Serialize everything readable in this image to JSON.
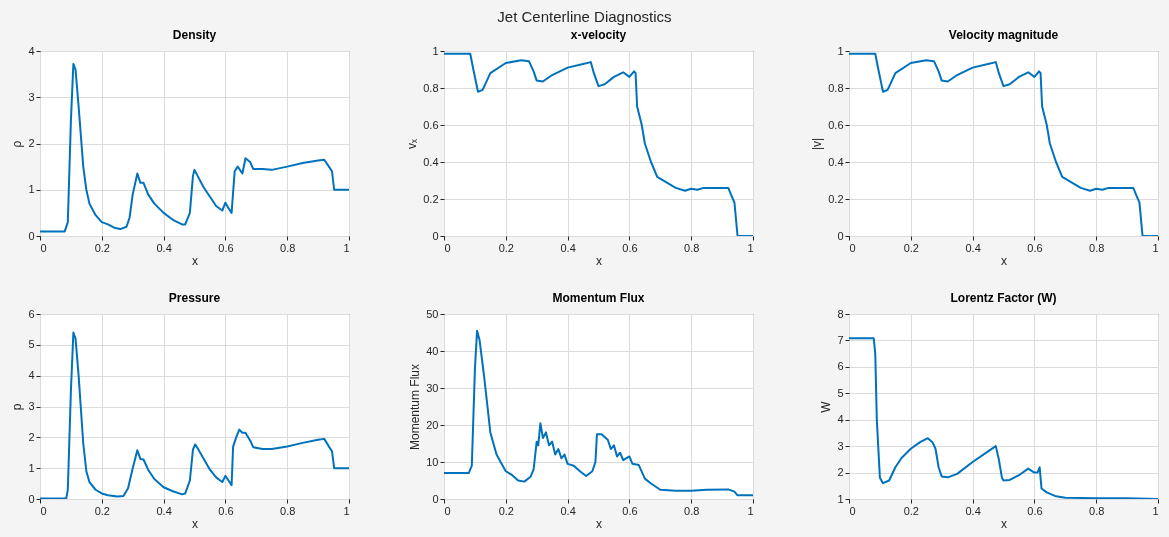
{
  "chart_data": [
    {
      "type": "other",
      "title": "Jet Centerline Diagnostics"
    },
    {
      "type": "line",
      "title": "Density",
      "xlabel": "x",
      "ylabel": "ρ",
      "xlim": [
        0,
        1
      ],
      "xticks": [
        0,
        0.2,
        0.4,
        0.6,
        0.8,
        1
      ],
      "ylim": [
        0,
        4
      ],
      "yticks": [
        0,
        1,
        2,
        3,
        4
      ],
      "grid": true,
      "x": [
        0,
        0.08,
        0.09,
        0.1,
        0.108,
        0.115,
        0.125,
        0.14,
        0.15,
        0.16,
        0.18,
        0.2,
        0.22,
        0.24,
        0.26,
        0.28,
        0.29,
        0.3,
        0.31,
        0.315,
        0.325,
        0.335,
        0.35,
        0.37,
        0.4,
        0.43,
        0.46,
        0.47,
        0.485,
        0.495,
        0.5,
        0.51,
        0.53,
        0.55,
        0.57,
        0.59,
        0.6,
        0.61,
        0.62,
        0.63,
        0.64,
        0.655,
        0.665,
        0.68,
        0.69,
        0.72,
        0.75,
        0.8,
        0.85,
        0.9,
        0.92,
        0.935,
        0.945,
        0.952,
        1
      ],
      "series": [
        {
          "color": "#0072bd",
          "values": [
            0.1,
            0.1,
            0.3,
            2.5,
            3.72,
            3.6,
            2.8,
            1.5,
            1.0,
            0.7,
            0.45,
            0.3,
            0.25,
            0.18,
            0.15,
            0.2,
            0.4,
            0.9,
            1.2,
            1.35,
            1.15,
            1.15,
            0.9,
            0.7,
            0.5,
            0.35,
            0.25,
            0.25,
            0.5,
            1.3,
            1.43,
            1.3,
            1.05,
            0.85,
            0.65,
            0.55,
            0.72,
            0.6,
            0.5,
            1.4,
            1.5,
            1.35,
            1.68,
            1.6,
            1.45,
            1.45,
            1.43,
            1.5,
            1.58,
            1.63,
            1.65,
            1.5,
            1.4,
            1.0,
            1.0
          ]
        }
      ]
    },
    {
      "type": "line",
      "title": "x-velocity",
      "xlabel": "x",
      "ylabel": "vₓ",
      "xlim": [
        0,
        1
      ],
      "xticks": [
        0,
        0.2,
        0.4,
        0.6,
        0.8,
        1
      ],
      "ylim": [
        0,
        1
      ],
      "yticks": [
        0,
        0.2,
        0.4,
        0.6,
        0.8,
        1
      ],
      "grid": true,
      "x": [
        0,
        0.085,
        0.095,
        0.11,
        0.125,
        0.15,
        0.2,
        0.25,
        0.275,
        0.29,
        0.3,
        0.32,
        0.35,
        0.4,
        0.45,
        0.475,
        0.485,
        0.5,
        0.52,
        0.55,
        0.58,
        0.6,
        0.615,
        0.62,
        0.625,
        0.64,
        0.65,
        0.67,
        0.69,
        0.72,
        0.75,
        0.78,
        0.8,
        0.82,
        0.84,
        0.9,
        0.92,
        0.93,
        0.94,
        0.95,
        1
      ],
      "series": [
        {
          "color": "#0072bd",
          "values": [
            0.985,
            0.985,
            0.9,
            0.78,
            0.79,
            0.88,
            0.935,
            0.95,
            0.945,
            0.89,
            0.84,
            0.835,
            0.87,
            0.91,
            0.93,
            0.94,
            0.88,
            0.81,
            0.82,
            0.86,
            0.885,
            0.86,
            0.89,
            0.88,
            0.7,
            0.6,
            0.5,
            0.4,
            0.32,
            0.29,
            0.26,
            0.245,
            0.255,
            0.25,
            0.26,
            0.26,
            0.26,
            0.22,
            0.18,
            0.0,
            0.0
          ]
        }
      ]
    },
    {
      "type": "line",
      "title": "Velocity magnitude",
      "xlabel": "x",
      "ylabel": "|v|",
      "xlim": [
        0,
        1
      ],
      "xticks": [
        0,
        0.2,
        0.4,
        0.6,
        0.8,
        1
      ],
      "ylim": [
        0,
        1
      ],
      "yticks": [
        0,
        0.2,
        0.4,
        0.6,
        0.8,
        1
      ],
      "grid": true,
      "x": [
        0,
        0.085,
        0.095,
        0.11,
        0.125,
        0.15,
        0.2,
        0.25,
        0.275,
        0.29,
        0.3,
        0.32,
        0.35,
        0.4,
        0.45,
        0.475,
        0.485,
        0.5,
        0.52,
        0.55,
        0.58,
        0.6,
        0.615,
        0.62,
        0.625,
        0.64,
        0.65,
        0.67,
        0.69,
        0.72,
        0.75,
        0.78,
        0.8,
        0.82,
        0.84,
        0.9,
        0.92,
        0.93,
        0.94,
        0.95,
        1
      ],
      "series": [
        {
          "color": "#0072bd",
          "values": [
            0.985,
            0.985,
            0.9,
            0.78,
            0.79,
            0.88,
            0.935,
            0.95,
            0.945,
            0.89,
            0.84,
            0.835,
            0.87,
            0.91,
            0.93,
            0.94,
            0.88,
            0.81,
            0.82,
            0.86,
            0.885,
            0.86,
            0.89,
            0.88,
            0.7,
            0.6,
            0.5,
            0.4,
            0.32,
            0.29,
            0.26,
            0.245,
            0.255,
            0.25,
            0.26,
            0.26,
            0.26,
            0.22,
            0.18,
            0.0,
            0.0
          ]
        }
      ]
    },
    {
      "type": "line",
      "title": "Pressure",
      "xlabel": "x",
      "ylabel": "p",
      "xlim": [
        0,
        1
      ],
      "xticks": [
        0,
        0.2,
        0.4,
        0.6,
        0.8,
        1
      ],
      "ylim": [
        0,
        6
      ],
      "yticks": [
        0,
        1,
        2,
        3,
        4,
        5,
        6
      ],
      "grid": true,
      "x": [
        0,
        0.085,
        0.09,
        0.1,
        0.108,
        0.115,
        0.125,
        0.14,
        0.15,
        0.16,
        0.18,
        0.2,
        0.22,
        0.25,
        0.27,
        0.285,
        0.3,
        0.315,
        0.325,
        0.335,
        0.35,
        0.37,
        0.4,
        0.43,
        0.46,
        0.47,
        0.485,
        0.495,
        0.502,
        0.51,
        0.53,
        0.55,
        0.57,
        0.59,
        0.6,
        0.61,
        0.62,
        0.625,
        0.635,
        0.645,
        0.655,
        0.665,
        0.68,
        0.69,
        0.72,
        0.75,
        0.8,
        0.85,
        0.9,
        0.92,
        0.935,
        0.945,
        0.952,
        1
      ],
      "series": [
        {
          "color": "#0072bd",
          "values": [
            0.02,
            0.02,
            0.3,
            3.5,
            5.4,
            5.2,
            4.0,
            1.8,
            0.9,
            0.55,
            0.3,
            0.18,
            0.12,
            0.08,
            0.1,
            0.35,
            1.0,
            1.58,
            1.3,
            1.28,
            0.95,
            0.65,
            0.38,
            0.25,
            0.15,
            0.18,
            0.6,
            1.6,
            1.77,
            1.65,
            1.3,
            0.95,
            0.7,
            0.55,
            0.75,
            0.6,
            0.45,
            1.7,
            2.0,
            2.25,
            2.15,
            2.15,
            1.9,
            1.68,
            1.62,
            1.62,
            1.7,
            1.82,
            1.92,
            1.95,
            1.7,
            1.55,
            1.0,
            1.0
          ]
        }
      ]
    },
    {
      "type": "line",
      "title": "Momentum Flux",
      "xlabel": "x",
      "ylabel": "Momentum Flux",
      "xlim": [
        0,
        1
      ],
      "xticks": [
        0,
        0.2,
        0.4,
        0.6,
        0.8,
        1
      ],
      "ylim": [
        0,
        50
      ],
      "yticks": [
        0,
        10,
        20,
        30,
        40,
        50
      ],
      "grid": true,
      "x": [
        0,
        0.08,
        0.09,
        0.1,
        0.107,
        0.115,
        0.13,
        0.15,
        0.17,
        0.19,
        0.2,
        0.22,
        0.24,
        0.26,
        0.28,
        0.29,
        0.3,
        0.305,
        0.312,
        0.32,
        0.33,
        0.34,
        0.35,
        0.36,
        0.37,
        0.38,
        0.39,
        0.4,
        0.42,
        0.44,
        0.46,
        0.48,
        0.49,
        0.495,
        0.51,
        0.53,
        0.54,
        0.55,
        0.56,
        0.57,
        0.58,
        0.6,
        0.61,
        0.63,
        0.65,
        0.67,
        0.7,
        0.75,
        0.8,
        0.85,
        0.92,
        0.94,
        0.95,
        1
      ],
      "series": [
        {
          "color": "#0072bd",
          "values": [
            7,
            7,
            9,
            35,
            45.5,
            43,
            33,
            18,
            12,
            9,
            7.5,
            6.5,
            5,
            4.7,
            6,
            8,
            15.5,
            14.5,
            20.5,
            16.5,
            18,
            14.5,
            15.5,
            12,
            13.5,
            11,
            12,
            9.5,
            9,
            7.5,
            6.2,
            7.5,
            10,
            17.5,
            17.5,
            16,
            13.5,
            14.5,
            11.5,
            12.5,
            10.5,
            11.5,
            9.5,
            9.2,
            5.5,
            4.2,
            2.5,
            2.2,
            2.2,
            2.5,
            2.6,
            2,
            1,
            1
          ]
        }
      ]
    },
    {
      "type": "line",
      "title": "Lorentz Factor (W)",
      "xlabel": "x",
      "ylabel": "W",
      "xlim": [
        0,
        1
      ],
      "xticks": [
        0,
        0.2,
        0.4,
        0.6,
        0.8,
        1
      ],
      "ylim": [
        1,
        8
      ],
      "yticks": [
        1,
        2,
        3,
        4,
        5,
        6,
        7,
        8
      ],
      "grid": true,
      "x": [
        0,
        0.08,
        0.085,
        0.09,
        0.1,
        0.11,
        0.13,
        0.15,
        0.17,
        0.2,
        0.23,
        0.255,
        0.27,
        0.28,
        0.29,
        0.3,
        0.32,
        0.35,
        0.4,
        0.45,
        0.475,
        0.485,
        0.495,
        0.5,
        0.52,
        0.55,
        0.58,
        0.6,
        0.61,
        0.617,
        0.623,
        0.64,
        0.67,
        0.7,
        0.8,
        0.9,
        1
      ],
      "series": [
        {
          "color": "#0072bd",
          "values": [
            7.08,
            7.08,
            6.5,
            4,
            1.8,
            1.6,
            1.7,
            2.2,
            2.55,
            2.9,
            3.15,
            3.3,
            3.15,
            2.9,
            2.2,
            1.85,
            1.82,
            1.95,
            2.4,
            2.8,
            3.0,
            2.5,
            1.8,
            1.7,
            1.72,
            1.9,
            2.15,
            2.0,
            2.0,
            2.2,
            1.4,
            1.25,
            1.1,
            1.05,
            1.03,
            1.03,
            1.0
          ]
        }
      ]
    }
  ]
}
